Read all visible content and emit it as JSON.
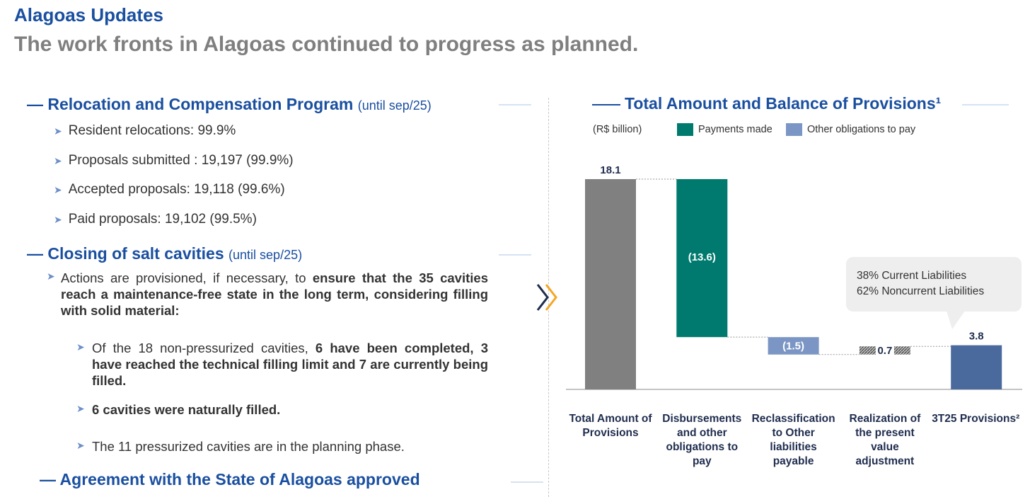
{
  "header": {
    "title": "Alagoas Updates",
    "subtitle": "The work fronts in Alagoas continued to progress as planned."
  },
  "sections": [
    {
      "title": "Relocation and Compensation  Program",
      "note": "(until sep/25)",
      "items": [
        "Resident relocations: 99.9%",
        "Proposals submitted : 19,197 (99.9%)",
        "Accepted proposals: 19,118 (99.6%)",
        "Paid proposals: 19,102 (99.5%)"
      ]
    },
    {
      "title": "Closing of salt cavities",
      "note": "(until sep/25)",
      "paragraph": [
        "Actions are provisioned, if necessary, to ",
        "ensure that the 35 cavities reach a maintenance-free state in the long term, considering filling with solid material:"
      ],
      "subitems": [
        [
          "Of the 18 non-pressurized cavities, ",
          "6 have been completed,  3 have reached the technical filling limit and 7 are currently being filled."
        ],
        [
          "6 cavities were naturally filled."
        ],
        [
          "The 11 pressurized cavities are in the planning phase."
        ]
      ]
    },
    {
      "title": "Agreement with the State of Alagoas approved"
    }
  ],
  "chart_data": {
    "type": "waterfall",
    "title": "Total Amount and Balance of Provisions¹",
    "unit_label": "(R$ billion)",
    "legend": [
      {
        "name": "Payments made",
        "color": "#007a6e"
      },
      {
        "name": "Other obligations to pay",
        "color": "#7b96c4"
      }
    ],
    "categories": [
      "Total Amount of Provisions",
      "Disbursements and other obligations to pay",
      "Reclassification to Other liabilities payable",
      "Realization of the present value adjustment",
      "3T25 Provisions²"
    ],
    "values": [
      18.1,
      -13.6,
      -1.5,
      0.7,
      3.8
    ],
    "value_labels": [
      "18.1",
      "(13.6)",
      "(1.5)",
      "0.7",
      "3.8"
    ],
    "colors": [
      "#808080",
      "#007a6e",
      "#7b96c4",
      "#808080",
      "#4a6a9e"
    ],
    "hatched": [
      false,
      false,
      false,
      true,
      false
    ],
    "annotation": [
      "38% Current Liabilities",
      "62% Noncurrent Liabilities"
    ]
  }
}
